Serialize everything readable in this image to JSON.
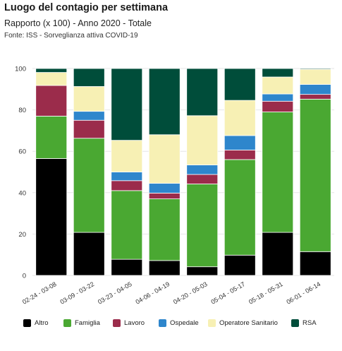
{
  "header": {
    "title": "Luogo del contagio per settimana",
    "subtitle": "Rapporto (x 100) - Anno 2020 - Totale",
    "source": "Fonte: ISS - Sorveglianza attiva COVID-19"
  },
  "chart_data": {
    "type": "bar",
    "stacked": true,
    "categories": [
      "02-24 - 03-08",
      "03-09 - 03-22",
      "03-23 - 04-05",
      "04-06 - 04-19",
      "04-20 - 05-03",
      "05-04 - 05-17",
      "05-18 - 05-31",
      "06-01 - 06-14"
    ],
    "series": [
      {
        "name": "Altro",
        "color": "#000000",
        "values": [
          56.5,
          20.8,
          7.8,
          7.2,
          4.2,
          9.8,
          20.8,
          11.5
        ]
      },
      {
        "name": "Famiglia",
        "color": "#4aa832",
        "values": [
          20.5,
          45.5,
          33.2,
          29.8,
          40.0,
          46.2,
          58.2,
          73.7
        ]
      },
      {
        "name": "Lavoro",
        "color": "#9b2c4b",
        "values": [
          14.8,
          8.7,
          4.8,
          2.8,
          4.6,
          4.6,
          5.2,
          2.3
        ]
      },
      {
        "name": "Ospedale",
        "color": "#2e86cc",
        "values": [
          0,
          4.3,
          4.2,
          4.7,
          4.6,
          7.0,
          3.5,
          4.8
        ]
      },
      {
        "name": "Operatore Sanitario",
        "color": "#f7f0b4",
        "values": [
          6.3,
          12.0,
          15.3,
          23.5,
          23.8,
          17.0,
          8.2,
          7.3
        ]
      },
      {
        "name": "RSA",
        "color": "#004d3a",
        "values": [
          1.9,
          8.7,
          34.7,
          32.0,
          22.8,
          15.4,
          4.1,
          0.4
        ]
      }
    ],
    "yticks": [
      0,
      20,
      40,
      60,
      80,
      100
    ],
    "ylim": [
      0,
      100
    ],
    "grid": true,
    "legend_position": "bottom"
  }
}
